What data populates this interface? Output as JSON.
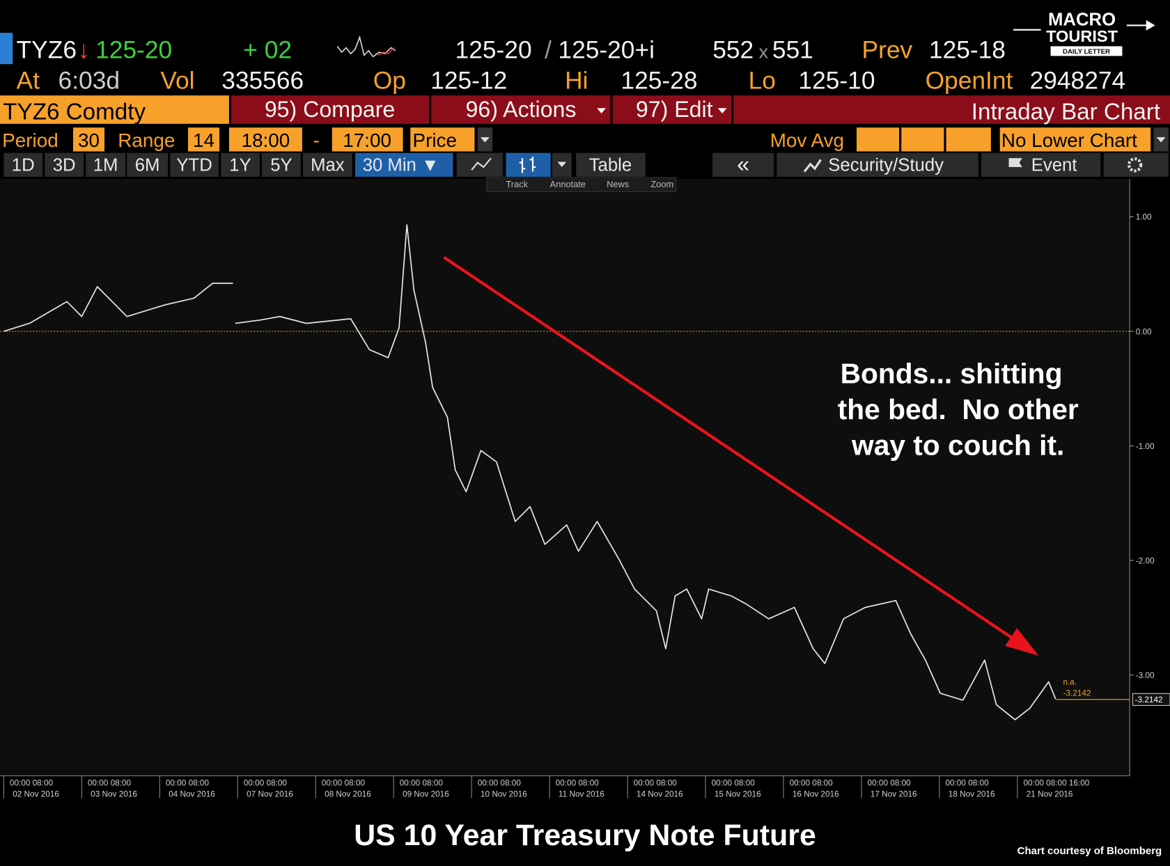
{
  "header": {
    "ticker": "TYZ6",
    "arrow": "↓",
    "last": "125-20",
    "change": "+ 02",
    "bid": "125-20",
    "sep": "/",
    "ask": "125-20+i",
    "size_bid": "552",
    "size_x": "x",
    "size_ask": "551",
    "prev_label": "Prev",
    "prev": "125-18",
    "at_label": "At",
    "time": "6:03d",
    "vol_label": "Vol",
    "vol": "335566",
    "op_label": "Op",
    "op": "125-12",
    "hi_label": "Hi",
    "hi": "125-28",
    "lo_label": "Lo",
    "lo": "125-10",
    "oi_label": "OpenInt",
    "oi": "2948274"
  },
  "logo": {
    "line1": "MACRO",
    "line2": "TOURIST",
    "line3": "DAILY LETTER"
  },
  "menu": {
    "security": "TYZ6 Comdty",
    "compare": "95) Compare",
    "actions": "96) Actions",
    "edit": "97) Edit",
    "chart_kind": "Intraday Bar Chart"
  },
  "settings": {
    "period_label": "Period",
    "period": "30",
    "range_label": "Range",
    "range": "14",
    "start": "18:00",
    "dash": "-",
    "end": "17:00",
    "field": "Price",
    "mov_avg": "Mov Avg",
    "lower": "No Lower Chart"
  },
  "toolbar": {
    "ranges": [
      "1D",
      "3D",
      "1M",
      "6M",
      "YTD",
      "1Y",
      "5Y",
      "Max"
    ],
    "interval": "30 Min ▼",
    "table": "Table",
    "back": "«",
    "study": "Security/Study",
    "event": "Event"
  },
  "tools": [
    "Track",
    "Annotate",
    "News",
    "Zoom"
  ],
  "chart_data": {
    "type": "line",
    "color": "#e6e6e6",
    "x": [
      0,
      0.33,
      0.81,
      1.0,
      1.2,
      1.58,
      2.06,
      2.44,
      2.68,
      2.94,
      null,
      2.97,
      3.3,
      3.54,
      3.88,
      4.45,
      4.69,
      4.93,
      5.07,
      5.17,
      5.26,
      5.41,
      5.5,
      5.69,
      5.79,
      5.93,
      6.12,
      6.32,
      6.56,
      6.75,
      6.94,
      7.22,
      7.37,
      7.61,
      7.89,
      8.09,
      8.37,
      8.49,
      8.61,
      8.76,
      8.95,
      9.04,
      9.33,
      9.52,
      9.81,
      10.14,
      10.38,
      10.53,
      10.77,
      11.05,
      11.44,
      11.63,
      11.82,
      12.01,
      12.3,
      12.58,
      12.73,
      12.97,
      13.16,
      13.4,
      13.49
    ],
    "values": [
      0,
      0.07,
      0.26,
      0.13,
      0.39,
      0.13,
      0.23,
      0.29,
      0.42,
      0.42,
      null,
      0.07,
      0.1,
      0.13,
      0.07,
      0.11,
      -0.16,
      -0.23,
      0.03,
      0.93,
      0.36,
      -0.1,
      -0.49,
      -0.75,
      -1.21,
      -1.4,
      -1.04,
      -1.14,
      -1.66,
      -1.53,
      -1.86,
      -1.69,
      -1.92,
      -1.66,
      -1.99,
      -2.25,
      -2.44,
      -2.77,
      -2.31,
      -2.25,
      -2.51,
      -2.25,
      -2.31,
      -2.38,
      -2.51,
      -2.41,
      -2.77,
      -2.9,
      -2.51,
      -2.41,
      -2.35,
      -2.64,
      -2.87,
      -3.16,
      -3.22,
      -2.87,
      -3.26,
      -3.39,
      -3.29,
      -3.06,
      -3.21
    ],
    "xlim": [
      0,
      14.44
    ],
    "ylim": [
      -3.88,
      1.33
    ],
    "yticks": [
      {
        "value": 1,
        "label": "1.00"
      },
      {
        "value": 0,
        "label": "0.00"
      },
      {
        "value": -1,
        "label": "-1.00"
      },
      {
        "value": -2,
        "label": "-2.00"
      },
      {
        "value": -3,
        "label": "-3.00"
      }
    ],
    "xticks": [
      {
        "value": 0,
        "label": "00:00 08:00"
      },
      {
        "value": 1,
        "label": "00:00 08:00"
      },
      {
        "value": 2,
        "label": "00:00 08:00"
      },
      {
        "value": 3,
        "label": "00:00 08:00"
      },
      {
        "value": 4,
        "label": "00:00 08:00"
      },
      {
        "value": 5,
        "label": "00:00 08:00"
      },
      {
        "value": 6,
        "label": "00:00 08:00"
      },
      {
        "value": 7,
        "label": "00:00 08:00"
      },
      {
        "value": 8,
        "label": "00:00 08:00"
      },
      {
        "value": 9,
        "label": "00:00 08:00"
      },
      {
        "value": 10,
        "label": "00:00 08:00"
      },
      {
        "value": 11,
        "label": "00:00 08:00"
      },
      {
        "value": 12,
        "label": "00:00 08:00"
      },
      {
        "value": 13,
        "label": "00:00 08:00 16:00"
      }
    ],
    "xtick_dates": [
      "02 Nov 2016",
      "03 Nov 2016",
      "04 Nov 2016",
      "07 Nov 2016",
      "08 Nov 2016",
      "09 Nov 2016",
      "10 Nov 2016",
      "11 Nov 2016",
      "14 Nov 2016",
      "15 Nov 2016",
      "16 Nov 2016",
      "17 Nov 2016",
      "18 Nov 2016",
      "21 Nov 2016"
    ],
    "baseline": 0,
    "baseline_color": "#f0a030",
    "last_value": -3.2142,
    "last_note": "n.a.",
    "annotation": [
      "Bonds... shitting",
      "the bed.  No other",
      "way to couch it."
    ]
  },
  "footer": {
    "title": "US 10 Year Treasury Note Future",
    "credit": "Chart courtesy of Bloomberg"
  }
}
